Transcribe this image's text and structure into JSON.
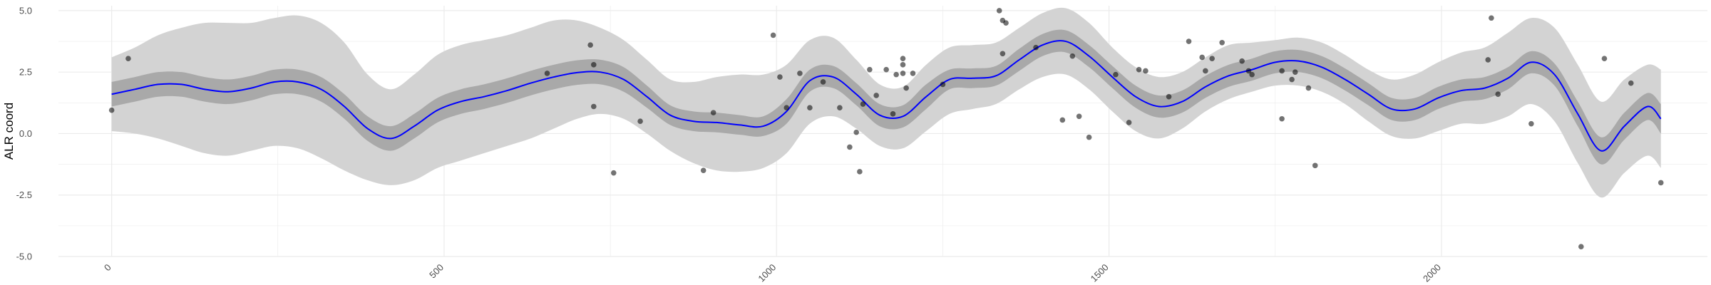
{
  "chart_data": {
    "type": "line",
    "xlabel": "",
    "ylabel": "ALR coord",
    "xlim": [
      -80,
      2400
    ],
    "ylim": [
      -5,
      5.2
    ],
    "x_ticks": [
      0,
      500,
      1000,
      1500,
      2000
    ],
    "x_tick_labels": [
      "0",
      "500",
      "1000",
      "1500",
      "2000"
    ],
    "y_ticks": [
      -5,
      -2.5,
      0,
      2.5,
      5
    ],
    "y_tick_labels": [
      "-5.0",
      "-2.5",
      "0.0",
      "2.5",
      "5.0"
    ],
    "grid": true,
    "colors": {
      "outer_band": "#d3d3d3",
      "inner_band": "#a9a9a9",
      "line": "#0000ff",
      "points": "#000000",
      "grid": "#ebebeb"
    },
    "series": [
      {
        "kind": "line",
        "x": [
          0,
          35,
          70,
          105,
          140,
          175,
          210,
          245,
          280,
          315,
          350,
          385,
          420,
          455,
          490,
          525,
          560,
          595,
          630,
          665,
          700,
          735,
          770,
          805,
          840,
          875,
          910,
          945,
          980,
          1015,
          1050,
          1085,
          1120,
          1155,
          1190,
          1225,
          1260,
          1295,
          1330,
          1365,
          1400,
          1435,
          1470,
          1505,
          1540,
          1575,
          1610,
          1645,
          1680,
          1715,
          1750,
          1785,
          1820,
          1855,
          1890,
          1925,
          1960,
          1995,
          2030,
          2065,
          2100,
          2135,
          2170,
          2205,
          2240,
          2275,
          2310,
          2330
        ],
        "y": [
          1.6,
          1.8,
          2.0,
          2.0,
          1.8,
          1.7,
          1.85,
          2.1,
          2.1,
          1.8,
          1.1,
          0.2,
          -0.2,
          0.3,
          0.95,
          1.3,
          1.5,
          1.75,
          2.05,
          2.3,
          2.48,
          2.5,
          2.2,
          1.5,
          0.75,
          0.5,
          0.45,
          0.35,
          0.3,
          0.9,
          2.15,
          2.3,
          1.6,
          0.75,
          0.7,
          1.5,
          2.2,
          2.25,
          2.35,
          3.0,
          3.6,
          3.75,
          3.15,
          2.3,
          1.5,
          1.1,
          1.3,
          1.9,
          2.35,
          2.6,
          2.9,
          2.95,
          2.7,
          2.2,
          1.6,
          1.0,
          1.0,
          1.45,
          1.75,
          1.85,
          2.25,
          2.9,
          2.4,
          0.8,
          -0.7,
          0.3,
          1.1,
          0.6
        ]
      },
      {
        "kind": "inner_band",
        "x": [
          0,
          35,
          70,
          105,
          140,
          175,
          210,
          245,
          280,
          315,
          350,
          385,
          420,
          455,
          490,
          525,
          560,
          595,
          630,
          665,
          700,
          735,
          770,
          805,
          840,
          875,
          910,
          945,
          980,
          1015,
          1050,
          1085,
          1120,
          1155,
          1190,
          1225,
          1260,
          1295,
          1330,
          1365,
          1400,
          1435,
          1470,
          1505,
          1540,
          1575,
          1610,
          1645,
          1680,
          1715,
          1750,
          1785,
          1820,
          1855,
          1890,
          1925,
          1960,
          1995,
          2030,
          2065,
          2100,
          2135,
          2170,
          2205,
          2240,
          2275,
          2310,
          2330
        ],
        "lower": [
          1.1,
          1.3,
          1.5,
          1.5,
          1.3,
          1.2,
          1.35,
          1.6,
          1.6,
          1.3,
          0.6,
          -0.3,
          -0.7,
          -0.2,
          0.45,
          0.8,
          1.0,
          1.25,
          1.55,
          1.8,
          1.98,
          2.0,
          1.7,
          1.05,
          0.35,
          0.1,
          0.05,
          -0.05,
          -0.1,
          0.4,
          1.7,
          1.85,
          1.15,
          0.3,
          0.25,
          1.0,
          1.8,
          1.85,
          1.95,
          2.55,
          3.15,
          3.3,
          2.7,
          1.85,
          1.05,
          0.65,
          0.85,
          1.45,
          1.9,
          2.15,
          2.45,
          2.5,
          2.25,
          1.75,
          1.15,
          0.55,
          0.55,
          1.0,
          1.3,
          1.4,
          1.8,
          2.45,
          1.95,
          0.3,
          -1.25,
          -0.25,
          0.55,
          0.0
        ],
        "upper": [
          2.1,
          2.3,
          2.5,
          2.5,
          2.3,
          2.2,
          2.35,
          2.6,
          2.6,
          2.3,
          1.6,
          0.7,
          0.3,
          0.8,
          1.45,
          1.8,
          2.0,
          2.25,
          2.55,
          2.8,
          2.98,
          3.0,
          2.7,
          1.95,
          1.15,
          0.9,
          0.85,
          0.75,
          0.7,
          1.4,
          2.6,
          2.75,
          2.05,
          1.2,
          1.15,
          2.0,
          2.6,
          2.65,
          2.75,
          3.45,
          4.05,
          4.2,
          3.6,
          2.75,
          1.95,
          1.55,
          1.75,
          2.35,
          2.8,
          3.05,
          3.35,
          3.4,
          3.15,
          2.65,
          2.05,
          1.45,
          1.45,
          1.9,
          2.2,
          2.3,
          2.7,
          3.35,
          2.85,
          1.3,
          -0.15,
          0.85,
          1.65,
          1.2
        ]
      },
      {
        "kind": "outer_band",
        "x": [
          0,
          35,
          70,
          105,
          140,
          175,
          210,
          245,
          280,
          315,
          350,
          385,
          420,
          455,
          490,
          525,
          560,
          595,
          630,
          665,
          700,
          735,
          770,
          805,
          840,
          875,
          910,
          945,
          980,
          1015,
          1050,
          1085,
          1120,
          1155,
          1190,
          1225,
          1260,
          1295,
          1330,
          1365,
          1400,
          1435,
          1470,
          1505,
          1540,
          1575,
          1610,
          1645,
          1680,
          1715,
          1750,
          1785,
          1820,
          1855,
          1890,
          1925,
          1960,
          1995,
          2030,
          2065,
          2100,
          2135,
          2170,
          2205,
          2240,
          2275,
          2310,
          2330
        ],
        "lower": [
          0.1,
          0.0,
          -0.2,
          -0.5,
          -0.8,
          -0.9,
          -0.7,
          -0.5,
          -0.6,
          -1.0,
          -1.5,
          -1.9,
          -2.1,
          -1.9,
          -1.4,
          -1.1,
          -0.8,
          -0.5,
          -0.2,
          0.2,
          0.6,
          0.8,
          0.6,
          0.0,
          -0.7,
          -1.2,
          -1.5,
          -1.55,
          -1.4,
          -0.8,
          0.4,
          0.7,
          0.2,
          -0.5,
          -0.6,
          0.1,
          0.8,
          1.0,
          1.2,
          1.8,
          2.3,
          2.4,
          1.8,
          0.9,
          0.1,
          -0.2,
          0.2,
          0.9,
          1.4,
          1.7,
          1.95,
          1.95,
          1.7,
          1.2,
          0.5,
          -0.1,
          -0.2,
          0.1,
          0.4,
          0.4,
          0.7,
          1.2,
          0.5,
          -1.2,
          -2.6,
          -1.6,
          -0.9,
          -1.4
        ],
        "upper": [
          3.1,
          3.5,
          4.0,
          4.3,
          4.5,
          4.5,
          4.5,
          4.7,
          4.8,
          4.5,
          3.7,
          2.4,
          1.8,
          2.4,
          3.2,
          3.6,
          3.8,
          4.0,
          4.3,
          4.6,
          4.6,
          4.3,
          3.8,
          3.0,
          2.2,
          2.1,
          2.3,
          2.4,
          2.4,
          2.8,
          3.8,
          3.9,
          3.0,
          2.0,
          1.9,
          2.8,
          3.5,
          3.6,
          3.7,
          4.3,
          4.9,
          5.1,
          4.5,
          3.5,
          2.7,
          2.3,
          2.5,
          3.1,
          3.6,
          3.7,
          3.8,
          3.9,
          3.7,
          3.2,
          2.6,
          2.2,
          2.4,
          2.9,
          3.3,
          3.5,
          4.1,
          4.7,
          4.3,
          2.8,
          1.3,
          2.2,
          2.8,
          2.6
        ]
      },
      {
        "kind": "scatter",
        "points": [
          [
            0,
            0.95
          ],
          [
            25,
            3.05
          ],
          [
            655,
            2.45
          ],
          [
            720,
            3.6
          ],
          [
            725,
            2.8
          ],
          [
            725,
            1.1
          ],
          [
            755,
            -1.6
          ],
          [
            795,
            0.5
          ],
          [
            890,
            -1.5
          ],
          [
            905,
            0.85
          ],
          [
            995,
            4.0
          ],
          [
            1005,
            2.3
          ],
          [
            1015,
            1.05
          ],
          [
            1035,
            2.45
          ],
          [
            1050,
            1.05
          ],
          [
            1070,
            2.1
          ],
          [
            1095,
            1.05
          ],
          [
            1110,
            -0.55
          ],
          [
            1120,
            0.05
          ],
          [
            1125,
            -1.55
          ],
          [
            1130,
            1.2
          ],
          [
            1140,
            2.6
          ],
          [
            1150,
            1.55
          ],
          [
            1165,
            2.6
          ],
          [
            1175,
            0.8
          ],
          [
            1180,
            2.4
          ],
          [
            1190,
            2.45
          ],
          [
            1190,
            2.8
          ],
          [
            1190,
            3.05
          ],
          [
            1195,
            1.85
          ],
          [
            1205,
            2.45
          ],
          [
            1250,
            2.0
          ],
          [
            1335,
            5.0
          ],
          [
            1340,
            4.6
          ],
          [
            1340,
            3.25
          ],
          [
            1345,
            4.5
          ],
          [
            1390,
            3.5
          ],
          [
            1430,
            0.55
          ],
          [
            1445,
            3.15
          ],
          [
            1455,
            0.7
          ],
          [
            1470,
            -0.15
          ],
          [
            1510,
            2.4
          ],
          [
            1530,
            0.45
          ],
          [
            1545,
            2.6
          ],
          [
            1555,
            2.55
          ],
          [
            1590,
            1.5
          ],
          [
            1620,
            3.75
          ],
          [
            1640,
            3.1
          ],
          [
            1645,
            2.55
          ],
          [
            1655,
            3.05
          ],
          [
            1670,
            3.7
          ],
          [
            1700,
            2.95
          ],
          [
            1710,
            2.55
          ],
          [
            1715,
            2.4
          ],
          [
            1760,
            0.6
          ],
          [
            1760,
            2.55
          ],
          [
            1775,
            2.2
          ],
          [
            1780,
            2.5
          ],
          [
            1800,
            1.85
          ],
          [
            1810,
            -1.3
          ],
          [
            2070,
            3.0
          ],
          [
            2075,
            4.7
          ],
          [
            2085,
            1.6
          ],
          [
            2135,
            0.4
          ],
          [
            2210,
            -4.6
          ],
          [
            2245,
            3.05
          ],
          [
            2285,
            2.05
          ],
          [
            2330,
            -2.0
          ]
        ]
      }
    ]
  }
}
